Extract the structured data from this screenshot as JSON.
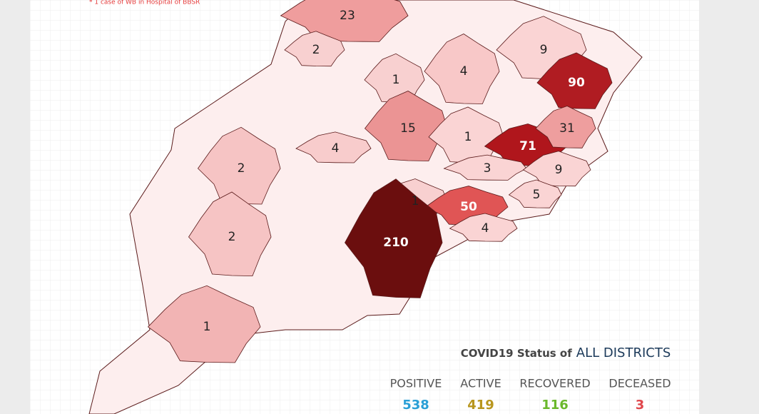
{
  "note": "* 1 case of WB in Hospital of BBSR",
  "regions": [
    {
      "value": 23,
      "color": "#ef9d9d"
    },
    {
      "value": 2,
      "color": "#f8d0d0"
    },
    {
      "value": 1,
      "color": "#f8d0d0"
    },
    {
      "value": 4,
      "color": "#f8c8c8"
    },
    {
      "value": 9,
      "color": "#fad4d4"
    },
    {
      "value": 90,
      "color": "#b01c22"
    },
    {
      "value": 15,
      "color": "#eb9494"
    },
    {
      "value": 1,
      "color": "#fad4d4"
    },
    {
      "value": 71,
      "color": "#b0161c"
    },
    {
      "value": 31,
      "color": "#ee9e9e"
    },
    {
      "value": 4,
      "color": "#f8cccc"
    },
    {
      "value": 2,
      "color": "#f6c4c4"
    },
    {
      "value": 3,
      "color": "#fad4d4"
    },
    {
      "value": 9,
      "color": "#fad4d4"
    },
    {
      "value": 1,
      "color": "#f8d0d0"
    },
    {
      "value": 50,
      "color": "#e05555"
    },
    {
      "value": 5,
      "color": "#fad4d4"
    },
    {
      "value": 2,
      "color": "#f6c4c4"
    },
    {
      "value": 4,
      "color": "#fad4d4"
    },
    {
      "value": 210,
      "color": "#6b0e0e"
    },
    {
      "value": 1,
      "color": "#f2b4b4"
    }
  ],
  "status": {
    "title": "COVID19 Status of",
    "scope": "ALL DISTRICTS",
    "items": [
      {
        "label": "POSITIVE",
        "value": 538,
        "color": "#2a9fd6"
      },
      {
        "label": "ACTIVE",
        "value": 419,
        "color": "#b8961e"
      },
      {
        "label": "RECOVERED",
        "value": 116,
        "color": "#6ab82b"
      },
      {
        "label": "DECEASED",
        "value": 3,
        "color": "#e0474c"
      }
    ]
  }
}
